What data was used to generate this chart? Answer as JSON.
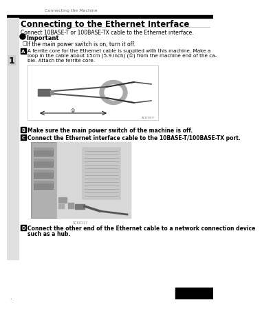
{
  "bg_color": "#ffffff",
  "header_text": "Connecting the Machine",
  "title": "Connecting to the Ethernet Interface",
  "intro": "Connect 10BASE-T or 100BASE-TX cable to the Ethernet interface.",
  "important_label": "Important",
  "important_bullet": "If the main power switch is on, turn it off.",
  "step1_text_line1": "A ferrite core for the Ethernet cable is supplied with this machine. Make a",
  "step1_text_line2": "loop in the cable about 15cm (5.9 inch) (①) from the machine end of the ca-",
  "step1_text_line3": "ble. Attach the ferrite core.",
  "step2_text": "Make sure the main power switch of the machine is off.",
  "step3_text": "Connect the Ethernet interface cable to the 10BASE-T/100BASE-TX port.",
  "step4_text_line1": "Connect the other end of the Ethernet cable to a network connection device",
  "step4_text_line2": "such as a hub.",
  "illus_label": "ACB/DE/F",
  "mach_label": "SCK0117",
  "sidebar_num": "1",
  "page_dot": "·",
  "header_line_color": "#bbbbbb",
  "black_bar_color": "#000000",
  "sidebar_bg": "#cccccc",
  "text_color": "#000000",
  "gray_text": "#666666",
  "step_box_color": "#000000",
  "step_text_color": "#ffffff",
  "illus_bg": "#f0f0f0",
  "mach_bg": "#d0d0d0",
  "mach_dark": "#888888",
  "mach_mid": "#aaaaaa"
}
